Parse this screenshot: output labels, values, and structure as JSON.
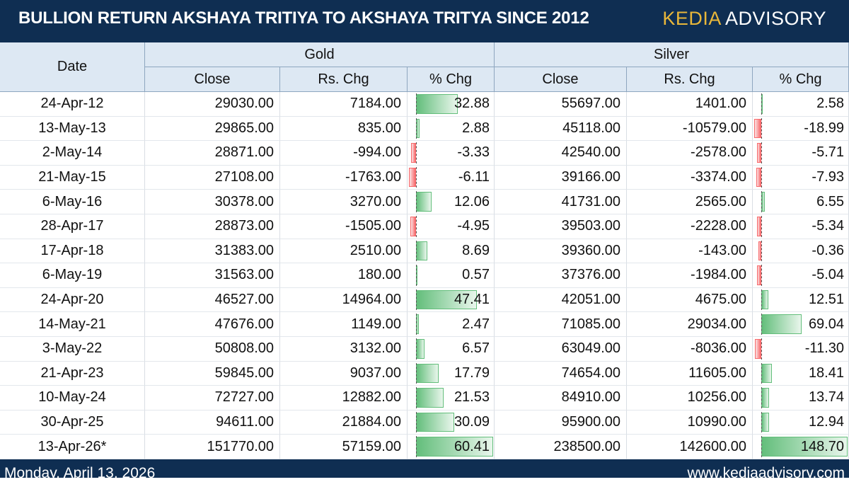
{
  "header": {
    "title": "BULLION RETURN AKSHAYA TRITIYA TO AKSHAYA TRITYA SINCE 2012",
    "brand_part1": "KEDIA",
    "brand_part2": " ADVISORY"
  },
  "table": {
    "date_header": "Date",
    "gold_header": "Gold",
    "silver_header": "Silver",
    "sub_headers": [
      "Close",
      "Rs. Chg",
      "% Chg",
      "Close",
      "Rs. Chg",
      "% Chg"
    ],
    "rows": [
      {
        "date": "24-Apr-12",
        "gold_close": "29030.00",
        "gold_chg": "7184.00",
        "gold_pct": "32.88",
        "silver_close": "55697.00",
        "silver_chg": "1401.00",
        "silver_pct": "2.58"
      },
      {
        "date": "13-May-13",
        "gold_close": "29865.00",
        "gold_chg": "835.00",
        "gold_pct": "2.88",
        "silver_close": "45118.00",
        "silver_chg": "-10579.00",
        "silver_pct": "-18.99"
      },
      {
        "date": "2-May-14",
        "gold_close": "28871.00",
        "gold_chg": "-994.00",
        "gold_pct": "-3.33",
        "silver_close": "42540.00",
        "silver_chg": "-2578.00",
        "silver_pct": "-5.71"
      },
      {
        "date": "21-May-15",
        "gold_close": "27108.00",
        "gold_chg": "-1763.00",
        "gold_pct": "-6.11",
        "silver_close": "39166.00",
        "silver_chg": "-3374.00",
        "silver_pct": "-7.93"
      },
      {
        "date": "6-May-16",
        "gold_close": "30378.00",
        "gold_chg": "3270.00",
        "gold_pct": "12.06",
        "silver_close": "41731.00",
        "silver_chg": "2565.00",
        "silver_pct": "6.55"
      },
      {
        "date": "28-Apr-17",
        "gold_close": "28873.00",
        "gold_chg": "-1505.00",
        "gold_pct": "-4.95",
        "silver_close": "39503.00",
        "silver_chg": "-2228.00",
        "silver_pct": "-5.34"
      },
      {
        "date": "17-Apr-18",
        "gold_close": "31383.00",
        "gold_chg": "2510.00",
        "gold_pct": "8.69",
        "silver_close": "39360.00",
        "silver_chg": "-143.00",
        "silver_pct": "-0.36"
      },
      {
        "date": "6-May-19",
        "gold_close": "31563.00",
        "gold_chg": "180.00",
        "gold_pct": "0.57",
        "silver_close": "37376.00",
        "silver_chg": "-1984.00",
        "silver_pct": "-5.04"
      },
      {
        "date": "24-Apr-20",
        "gold_close": "46527.00",
        "gold_chg": "14964.00",
        "gold_pct": "47.41",
        "silver_close": "42051.00",
        "silver_chg": "4675.00",
        "silver_pct": "12.51"
      },
      {
        "date": "14-May-21",
        "gold_close": "47676.00",
        "gold_chg": "1149.00",
        "gold_pct": "2.47",
        "silver_close": "71085.00",
        "silver_chg": "29034.00",
        "silver_pct": "69.04"
      },
      {
        "date": "3-May-22",
        "gold_close": "50808.00",
        "gold_chg": "3132.00",
        "gold_pct": "6.57",
        "silver_close": "63049.00",
        "silver_chg": "-8036.00",
        "silver_pct": "-11.30"
      },
      {
        "date": "21-Apr-23",
        "gold_close": "59845.00",
        "gold_chg": "9037.00",
        "gold_pct": "17.79",
        "silver_close": "74654.00",
        "silver_chg": "11605.00",
        "silver_pct": "18.41"
      },
      {
        "date": "10-May-24",
        "gold_close": "72727.00",
        "gold_chg": "12882.00",
        "gold_pct": "21.53",
        "silver_close": "84910.00",
        "silver_chg": "10256.00",
        "silver_pct": "13.74"
      },
      {
        "date": "30-Apr-25",
        "gold_close": "94611.00",
        "gold_chg": "21884.00",
        "gold_pct": "30.09",
        "silver_close": "95900.00",
        "silver_chg": "10990.00",
        "silver_pct": "12.94"
      },
      {
        "date": "13-Apr-26*",
        "gold_close": "151770.00",
        "gold_chg": "57159.00",
        "gold_pct": "60.41",
        "silver_close": "238500.00",
        "silver_chg": "142600.00",
        "silver_pct": "148.70"
      }
    ]
  },
  "footer": {
    "date": "Monday, April 13, 2026",
    "website": "www.kediaadvisory.com"
  },
  "colors": {
    "header_bg": "#0f2e52",
    "brand_accent": "#e8b73a",
    "positive_bar": "#63be7b",
    "negative_bar": "#f8696b",
    "table_header_bg": "#dde8f3"
  }
}
